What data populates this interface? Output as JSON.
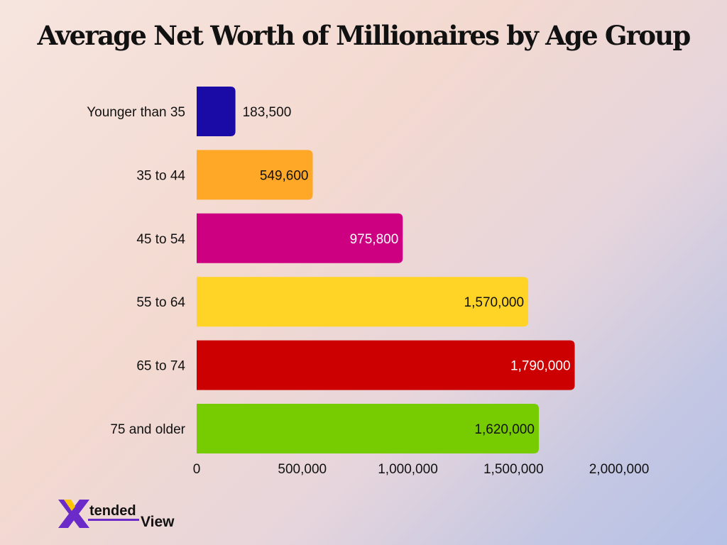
{
  "chart_data": {
    "type": "bar",
    "orientation": "horizontal",
    "title": "Average Net Worth of Millionaires by Age Group",
    "xlabel": "",
    "ylabel": "",
    "categories": [
      "Younger than 35",
      "35 to 44",
      "45 to 54",
      "55 to 64",
      "65 to 74",
      "75 and older"
    ],
    "values": [
      183500,
      549600,
      975800,
      1570000,
      1790000,
      1620000
    ],
    "value_labels": [
      "183,500",
      "549,600",
      "975,800",
      "1,570,000",
      "1,790,000",
      "1,620,000"
    ],
    "bar_colors": [
      "#1a0aa6",
      "#ffa726",
      "#cc0080",
      "#ffd426",
      "#cc0000",
      "#76cc00"
    ],
    "label_colors": [
      "#111111",
      "#111111",
      "#ffffff",
      "#111111",
      "#ffffff",
      "#111111"
    ],
    "xlim": [
      0,
      2000000
    ],
    "xticks": [
      0,
      500000,
      1000000,
      1500000,
      2000000
    ],
    "xtick_labels": [
      "0",
      "500,000",
      "1,000,000",
      "1,500,000",
      "2,000,000"
    ],
    "grid": false,
    "legend": "none"
  },
  "logo": {
    "text_tended": "tended",
    "text_view": "View",
    "colors": {
      "x_light": "#ffc400",
      "x_dark": "#6a2bc8",
      "underline": "#6a2bc8",
      "text": "#111111"
    }
  }
}
